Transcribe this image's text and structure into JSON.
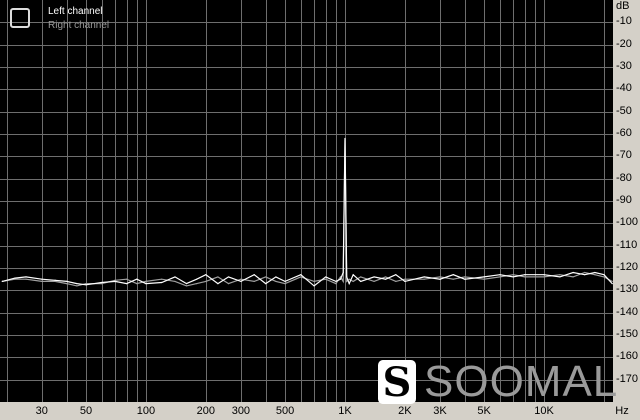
{
  "chart_data": {
    "type": "line",
    "xscale": "log",
    "xlim": [
      18.5,
      22200
    ],
    "ylim": [
      -180,
      0
    ],
    "grid": true,
    "legend_placement": "top-left",
    "xunit": "Hz",
    "yunit": "dB",
    "xticks": [
      {
        "v": 30,
        "label": "30"
      },
      {
        "v": 50,
        "label": "50"
      },
      {
        "v": 100,
        "label": "100"
      },
      {
        "v": 200,
        "label": "200"
      },
      {
        "v": 300,
        "label": "300"
      },
      {
        "v": 500,
        "label": "500"
      },
      {
        "v": 1000,
        "label": "1K"
      },
      {
        "v": 2000,
        "label": "2K"
      },
      {
        "v": 3000,
        "label": "3K"
      },
      {
        "v": 5000,
        "label": "5K"
      },
      {
        "v": 10000,
        "label": "10K"
      }
    ],
    "yticks": [
      -10,
      -20,
      -30,
      -40,
      -50,
      -60,
      -70,
      -80,
      -90,
      -100,
      -110,
      -120,
      -130,
      -140,
      -150,
      -160,
      -170
    ],
    "x": [
      19,
      22,
      25,
      30,
      35,
      40,
      45,
      50,
      60,
      70,
      80,
      90,
      100,
      120,
      140,
      160,
      180,
      200,
      230,
      260,
      300,
      350,
      400,
      450,
      500,
      600,
      700,
      800,
      900,
      950,
      980,
      1000,
      1020,
      1050,
      1100,
      1200,
      1400,
      1600,
      1800,
      2000,
      2500,
      3000,
      3500,
      4000,
      5000,
      6000,
      7000,
      8000,
      10000,
      12000,
      14000,
      16000,
      18000,
      20000,
      22000
    ],
    "series": [
      {
        "name": "Left channel",
        "color": "#ffffff",
        "values": [
          -126,
          -124.5,
          -124,
          -125,
          -125.5,
          -126,
          -127,
          -127.5,
          -126.5,
          -126,
          -127,
          -125,
          -127,
          -126.5,
          -124,
          -127,
          -125,
          -123,
          -127,
          -124,
          -126,
          -123,
          -127,
          -124,
          -126,
          -123,
          -128,
          -124,
          -126,
          -125,
          -122,
          -62,
          -124,
          -127,
          -123,
          -126,
          -124,
          -125,
          -123,
          -126,
          -124,
          -125,
          -123,
          -125,
          -124,
          -123,
          -124,
          -123,
          -123,
          -124,
          -122,
          -123,
          -122,
          -123,
          -127
        ]
      },
      {
        "name": "Right channel",
        "color": "#a0a0a0",
        "values": [
          -126,
          -125,
          -125,
          -126,
          -126,
          -127,
          -128,
          -127,
          -127,
          -125.5,
          -125,
          -127,
          -126,
          -125,
          -126,
          -128,
          -127,
          -126,
          -124,
          -127,
          -125,
          -126,
          -124,
          -126,
          -127,
          -124,
          -126,
          -125,
          -127,
          -124,
          -126,
          -63,
          -126,
          -125,
          -126,
          -124,
          -126,
          -124,
          -126,
          -125,
          -125,
          -124,
          -125,
          -124,
          -125,
          -124,
          -123,
          -124,
          -124,
          -123,
          -124,
          -122,
          -123,
          -124,
          -126
        ]
      }
    ]
  },
  "legend": {
    "left": "Left channel",
    "right": "Right channel"
  },
  "axis": {
    "y_unit_label": "dB",
    "x_unit_label": "Hz"
  },
  "watermark": {
    "text": "SOOMAL",
    "logo": "S"
  }
}
